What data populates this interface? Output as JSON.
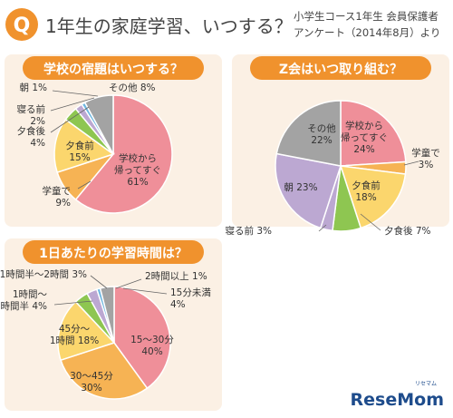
{
  "header": {
    "q_letter": "Q",
    "question": "1年生の家庭学習、いつする？",
    "source_line1": "小学生コース1年生 会員保護者",
    "source_line2": "アンケート（2014年8月）より"
  },
  "brand": {
    "logo_text": "ReseMom",
    "logo_small": "リセマム"
  },
  "colors": {
    "orange": "#f0922d",
    "pink": "#ef8f99",
    "yellow": "#fbd66d",
    "tan": "#f6b354",
    "green": "#8ec651",
    "lavender": "#bca8d2",
    "gray": "#a3a3a3",
    "blue": "#6fb7e0",
    "deep_orange": "#f08a2b"
  },
  "chart_data": [
    {
      "type": "pie",
      "title": "学校の宿題はいつする？",
      "slices": [
        {
          "label": "学校から帰ってすぐ",
          "lines": [
            "学校から",
            "帰ってすぐ"
          ],
          "pct_text": "61%",
          "value": 61,
          "color": "#ef8f99"
        },
        {
          "label": "学童で",
          "lines": [
            "学童で"
          ],
          "pct_text": "9%",
          "value": 9,
          "color": "#f6b354"
        },
        {
          "label": "夕食前",
          "lines": [
            "夕食前"
          ],
          "pct_text": "15%",
          "value": 15,
          "color": "#fbd66d"
        },
        {
          "label": "夕食後",
          "lines": [
            "夕食後"
          ],
          "pct_text": "4%",
          "value": 4,
          "color": "#8ec651"
        },
        {
          "label": "寝る前",
          "lines": [
            "寝る前"
          ],
          "pct_text": "2%",
          "value": 2,
          "color": "#bca8d2"
        },
        {
          "label": "朝",
          "lines": [
            "朝"
          ],
          "pct_text": "1%",
          "value": 1,
          "color": "#6fb7e0"
        },
        {
          "label": "その他",
          "lines": [
            "その他"
          ],
          "pct_text": "8%",
          "value": 8,
          "color": "#a3a3a3"
        }
      ]
    },
    {
      "type": "pie",
      "title": "Z会はいつ取り組む？",
      "slices": [
        {
          "label": "学校から帰ってすぐ",
          "lines": [
            "学校から",
            "帰ってすぐ"
          ],
          "pct_text": "24%",
          "value": 24,
          "color": "#ef8f99"
        },
        {
          "label": "学童で",
          "lines": [
            "学童で"
          ],
          "pct_text": "3%",
          "value": 3,
          "color": "#f6b354"
        },
        {
          "label": "夕食前",
          "lines": [
            "夕食前"
          ],
          "pct_text": "18%",
          "value": 18,
          "color": "#fbd66d"
        },
        {
          "label": "夕食後",
          "lines": [
            "夕食後"
          ],
          "pct_text": "7%",
          "value": 7,
          "color": "#8ec651"
        },
        {
          "label": "寝る前",
          "lines": [
            "寝る前"
          ],
          "pct_text": "3%",
          "value": 3,
          "color": "#bca8d2"
        },
        {
          "label": "朝",
          "lines": [
            "朝"
          ],
          "pct_text": "23%",
          "value": 23,
          "color": "#bca8d2"
        },
        {
          "label": "その他",
          "lines": [
            "その他"
          ],
          "pct_text": "22%",
          "value": 22,
          "color": "#a3a3a3"
        }
      ]
    },
    {
      "type": "pie",
      "title": "1日あたりの学習時間は？",
      "slices": [
        {
          "label": "15～30分",
          "lines": [
            "15～30分"
          ],
          "pct_text": "40%",
          "value": 40,
          "color": "#ef8f99"
        },
        {
          "label": "30～45分",
          "lines": [
            "30～45分"
          ],
          "pct_text": "30%",
          "value": 30,
          "color": "#f6b354"
        },
        {
          "label": "45分～1時間",
          "lines": [
            "45分～",
            "1時間"
          ],
          "pct_text": "18%",
          "value": 18,
          "color": "#fbd66d"
        },
        {
          "label": "1時間～1時間半",
          "lines": [
            "1時間～",
            "1時間半"
          ],
          "pct_text": "4%",
          "value": 4,
          "color": "#8ec651"
        },
        {
          "label": "1時間半～2時間",
          "lines": [
            "1時間半～2時間"
          ],
          "pct_text": "3%",
          "value": 3,
          "color": "#bca8d2"
        },
        {
          "label": "2時間以上",
          "lines": [
            "2時間以上"
          ],
          "pct_text": "1%",
          "value": 1,
          "color": "#6fb7e0"
        },
        {
          "label": "15分未満",
          "lines": [
            "15分未満"
          ],
          "pct_text": "4%",
          "value": 4,
          "color": "#a3a3a3"
        }
      ]
    }
  ]
}
